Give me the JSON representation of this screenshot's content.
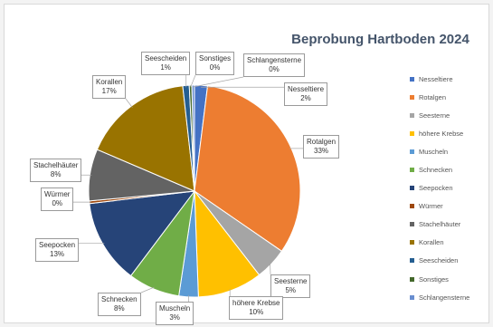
{
  "chart_data": {
    "type": "pie",
    "title": "Beprobung Hartboden 2024",
    "legend_position": "right",
    "slices": [
      {
        "name": "Nesseltiere",
        "value": 2,
        "label": "2%",
        "color": "#4472c4"
      },
      {
        "name": "Rotalgen",
        "value": 33,
        "label": "33%",
        "color": "#ed7d31"
      },
      {
        "name": "Seesterne",
        "value": 5,
        "label": "5%",
        "color": "#a5a5a5"
      },
      {
        "name": "höhere Krebse",
        "value": 10,
        "label": "10%",
        "color": "#ffc000"
      },
      {
        "name": "Muscheln",
        "value": 3,
        "label": "3%",
        "color": "#5b9bd5"
      },
      {
        "name": "Schnecken",
        "value": 8,
        "label": "8%",
        "color": "#70ad47"
      },
      {
        "name": "Seepocken",
        "value": 13,
        "label": "13%",
        "color": "#264478"
      },
      {
        "name": "Würmer",
        "value": 0,
        "label": "0%",
        "color": "#9e480e"
      },
      {
        "name": "Stachelhäuter",
        "value": 8,
        "label": "8%",
        "color": "#636363"
      },
      {
        "name": "Korallen",
        "value": 17,
        "label": "17%",
        "color": "#997300"
      },
      {
        "name": "Seescheiden",
        "value": 1,
        "label": "1%",
        "color": "#255e91"
      },
      {
        "name": "Sonstiges",
        "value": 0,
        "label": "0%",
        "color": "#43682b"
      },
      {
        "name": "Schlangensterne",
        "value": 0,
        "label": "0%",
        "color": "#698ed0"
      }
    ]
  }
}
